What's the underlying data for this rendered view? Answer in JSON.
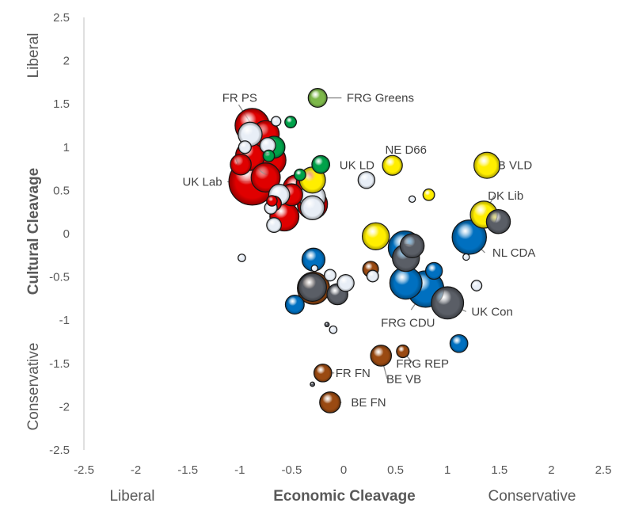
{
  "chart_data": {
    "type": "scatter",
    "subtype": "bubble",
    "title": "",
    "xlabel": "Economic Cleavage",
    "ylabel": "Cultural Cleavage",
    "xlabel_left": "Liberal",
    "xlabel_right": "Conservative",
    "ylabel_top": "Liberal",
    "ylabel_bottom": "Conservative",
    "xlim": [
      -2.5,
      2.5
    ],
    "ylim": [
      -2.5,
      2.5
    ],
    "xticks": [
      "-2.5",
      "-2",
      "-1.5",
      "-1",
      "-0.5",
      "0",
      "0.5",
      "1",
      "1.5",
      "2",
      "2.5"
    ],
    "yticks": [
      "2.5",
      "2",
      "1.5",
      "1",
      "0.5",
      "0",
      "-0.5",
      "-1",
      "-1.5",
      "-2",
      "-2.5"
    ],
    "grid": false,
    "legend": "none",
    "colors": {
      "red": "#e00000",
      "green": "#00a24a",
      "lightgreen": "#7db84a",
      "white": "#e8eef6",
      "yellow": "#ffee00",
      "blue": "#0070c0",
      "grey": "#5a5e66",
      "brown": "#9a4a12"
    },
    "points": [
      {
        "x": -0.88,
        "y": 1.25,
        "size": 1.55,
        "color": "red"
      },
      {
        "x": -0.75,
        "y": 1.15,
        "size": 1.2,
        "color": "red"
      },
      {
        "x": -0.9,
        "y": 1.15,
        "size": 1.05,
        "color": "white"
      },
      {
        "x": -0.95,
        "y": 1.0,
        "size": 0.5,
        "color": "white"
      },
      {
        "x": -0.9,
        "y": 0.9,
        "size": 1.3,
        "color": "red"
      },
      {
        "x": -0.7,
        "y": 0.85,
        "size": 1.35,
        "color": "red"
      },
      {
        "x": -0.99,
        "y": 0.8,
        "size": 0.9,
        "color": "red"
      },
      {
        "x": -0.75,
        "y": 0.65,
        "size": 1.3,
        "color": "red"
      },
      {
        "x": -0.88,
        "y": 0.6,
        "size": 2.15,
        "color": "red"
      },
      {
        "x": -0.62,
        "y": 0.45,
        "size": 0.9,
        "color": "white"
      },
      {
        "x": -0.67,
        "y": 0.35,
        "size": 0.6,
        "color": "red"
      },
      {
        "x": -0.45,
        "y": 0.52,
        "size": 1.25,
        "color": "red"
      },
      {
        "x": -0.5,
        "y": 0.45,
        "size": 0.95,
        "color": "red"
      },
      {
        "x": -0.33,
        "y": 0.58,
        "size": 1.15,
        "color": "red"
      },
      {
        "x": -0.3,
        "y": 0.42,
        "size": 1.15,
        "color": "white"
      },
      {
        "x": -0.3,
        "y": 0.3,
        "size": 1.05,
        "color": "white"
      },
      {
        "x": -0.3,
        "y": 0.34,
        "size": 1.35,
        "color": "red"
      },
      {
        "x": -0.57,
        "y": 0.2,
        "size": 1.3,
        "color": "red"
      },
      {
        "x": -0.67,
        "y": 0.1,
        "size": 0.6,
        "color": "white"
      },
      {
        "x": -0.7,
        "y": 0.3,
        "size": 0.5,
        "color": "white"
      },
      {
        "x": -0.69,
        "y": 0.38,
        "size": 0.4,
        "color": "red"
      },
      {
        "x": -0.67,
        "y": 1.0,
        "size": 0.95,
        "color": "green"
      },
      {
        "x": -0.73,
        "y": 1.02,
        "size": 0.65,
        "color": "white"
      },
      {
        "x": -0.65,
        "y": 1.3,
        "size": 0.35,
        "color": "white"
      },
      {
        "x": -0.51,
        "y": 1.29,
        "size": 0.45,
        "color": "green"
      },
      {
        "x": -0.72,
        "y": 0.9,
        "size": 0.45,
        "color": "green"
      },
      {
        "x": -0.42,
        "y": 0.68,
        "size": 0.45,
        "color": "green"
      },
      {
        "x": -0.22,
        "y": 0.8,
        "size": 0.75,
        "color": "green"
      },
      {
        "x": -0.25,
        "y": 1.57,
        "size": 0.8,
        "color": "lightgreen"
      },
      {
        "x": -0.3,
        "y": 0.62,
        "size": 1.15,
        "color": "yellow"
      },
      {
        "x": 0.47,
        "y": 0.79,
        "size": 0.85,
        "color": "yellow"
      },
      {
        "x": 0.82,
        "y": 0.45,
        "size": 0.45,
        "color": "yellow"
      },
      {
        "x": 1.38,
        "y": 0.79,
        "size": 1.15,
        "color": "yellow"
      },
      {
        "x": 1.35,
        "y": 0.22,
        "size": 1.2,
        "color": "yellow"
      },
      {
        "x": 0.31,
        "y": -0.03,
        "size": 1.2,
        "color": "yellow"
      },
      {
        "x": 0.22,
        "y": 0.62,
        "size": 0.7,
        "color": "white"
      },
      {
        "x": 0.66,
        "y": 0.4,
        "size": 0.2,
        "color": "white"
      },
      {
        "x": 1.49,
        "y": 0.14,
        "size": 1.05,
        "color": "grey"
      },
      {
        "x": 0.66,
        "y": -0.14,
        "size": 1.05,
        "color": "grey"
      },
      {
        "x": 0.6,
        "y": -0.28,
        "size": 1.2,
        "color": "grey"
      },
      {
        "x": 0.59,
        "y": -0.16,
        "size": 1.5,
        "color": "blue"
      },
      {
        "x": 1.21,
        "y": -0.04,
        "size": 1.55,
        "color": "blue"
      },
      {
        "x": 1.18,
        "y": -0.27,
        "size": 0.2,
        "color": "white"
      },
      {
        "x": 0.6,
        "y": -0.57,
        "size": 1.45,
        "color": "blue"
      },
      {
        "x": 0.79,
        "y": -0.64,
        "size": 1.65,
        "color": "blue"
      },
      {
        "x": 0.87,
        "y": -0.43,
        "size": 0.7,
        "color": "blue"
      },
      {
        "x": 1.0,
        "y": -0.8,
        "size": 1.45,
        "color": "grey"
      },
      {
        "x": 1.28,
        "y": -0.6,
        "size": 0.4,
        "color": "white"
      },
      {
        "x": 1.11,
        "y": -1.27,
        "size": 0.75,
        "color": "blue"
      },
      {
        "x": -0.29,
        "y": -0.3,
        "size": 1.0,
        "color": "blue"
      },
      {
        "x": -0.28,
        "y": -0.4,
        "size": 0.2,
        "color": "white"
      },
      {
        "x": -0.13,
        "y": -0.48,
        "size": 0.45,
        "color": "white"
      },
      {
        "x": -0.3,
        "y": -0.62,
        "size": 1.25,
        "color": "grey"
      },
      {
        "x": -0.29,
        "y": -0.63,
        "size": 1.45,
        "color": "brown"
      },
      {
        "x": -0.06,
        "y": -0.7,
        "size": 0.9,
        "color": "grey"
      },
      {
        "x": 0.02,
        "y": -0.57,
        "size": 0.7,
        "color": "white"
      },
      {
        "x": -0.47,
        "y": -0.82,
        "size": 0.8,
        "color": "blue"
      },
      {
        "x": 0.28,
        "y": -0.49,
        "size": 0.45,
        "color": "white"
      },
      {
        "x": 0.26,
        "y": -0.41,
        "size": 0.65,
        "color": "brown"
      },
      {
        "x": -0.98,
        "y": -0.28,
        "size": 0.25,
        "color": "white"
      },
      {
        "x": -0.1,
        "y": -1.11,
        "size": 0.25,
        "color": "white"
      },
      {
        "x": -0.16,
        "y": -1.05,
        "size": 0.1,
        "color": "grey"
      },
      {
        "x": 0.36,
        "y": -1.41,
        "size": 0.9,
        "color": "brown"
      },
      {
        "x": 0.57,
        "y": -1.36,
        "size": 0.5,
        "color": "brown"
      },
      {
        "x": -0.2,
        "y": -1.61,
        "size": 0.75,
        "color": "brown"
      },
      {
        "x": -0.13,
        "y": -1.95,
        "size": 0.9,
        "color": "brown"
      },
      {
        "x": -0.3,
        "y": -1.74,
        "size": 0.1,
        "color": "grey"
      }
    ],
    "annotations": [
      {
        "text": "FRG Greens",
        "x": -0.25,
        "y": 1.57,
        "tx": -0.02,
        "ty": 1.57,
        "label_x": 0.03,
        "label_y": 1.57,
        "anchor": "start"
      },
      {
        "text": "FR PS",
        "x": -0.88,
        "y": 1.25,
        "tx": -1.01,
        "ty": 1.49,
        "label_x": -1.0,
        "label_y": 1.57,
        "anchor": "middle"
      },
      {
        "text": "UK LD",
        "x": -0.3,
        "y": 0.62,
        "tx": -0.13,
        "ty": 0.79,
        "label_x": -0.04,
        "label_y": 0.79,
        "anchor": "start"
      },
      {
        "text": "NE D66",
        "x": 0.47,
        "y": 0.79,
        "label_x": 0.6,
        "label_y": 0.97,
        "anchor": "middle"
      },
      {
        "text": "B VLD",
        "x": 1.38,
        "y": 0.79,
        "label_x": 1.65,
        "label_y": 0.79,
        "anchor": "middle"
      },
      {
        "text": "DK Lib",
        "x": 1.35,
        "y": 0.22,
        "tx": 1.45,
        "ty": 0.44,
        "label_x": 1.56,
        "label_y": 0.44,
        "anchor": "middle"
      },
      {
        "text": "UK Lab",
        "x": -0.88,
        "y": 0.6,
        "tx": -1.12,
        "ty": 0.6,
        "label_x": -1.36,
        "label_y": 0.6,
        "anchor": "middle"
      },
      {
        "text": "NL CDA",
        "x": 1.21,
        "y": -0.04,
        "tx": 1.36,
        "ty": -0.22,
        "label_x": 1.64,
        "label_y": -0.22,
        "anchor": "middle"
      },
      {
        "text": "FRG CDU",
        "x": 0.79,
        "y": -0.64,
        "tx": 0.65,
        "ty": -0.88,
        "label_x": 0.62,
        "label_y": -1.03,
        "anchor": "middle"
      },
      {
        "text": "UK Con",
        "x": 1.0,
        "y": -0.8,
        "tx": 1.18,
        "ty": -0.9,
        "label_x": 1.43,
        "label_y": -0.9,
        "anchor": "middle"
      },
      {
        "text": "FRG REP",
        "x": 0.57,
        "y": -1.36,
        "tx": 0.67,
        "ty": -1.5,
        "label_x": 0.76,
        "label_y": -1.5,
        "anchor": "middle"
      },
      {
        "text": "BE VB",
        "x": 0.36,
        "y": -1.41,
        "tx": 0.42,
        "ty": -1.68,
        "label_x": 0.58,
        "label_y": -1.68,
        "anchor": "middle"
      },
      {
        "text": "FR FN",
        "x": -0.2,
        "y": -1.61,
        "tx": -0.09,
        "ty": -1.61,
        "label_x": 0.09,
        "label_y": -1.61,
        "anchor": "middle"
      },
      {
        "text": "BE FN",
        "x": -0.13,
        "y": -1.95,
        "tx": -0.02,
        "ty": -1.95,
        "label_x": 0.24,
        "label_y": -1.95,
        "anchor": "middle"
      }
    ]
  }
}
